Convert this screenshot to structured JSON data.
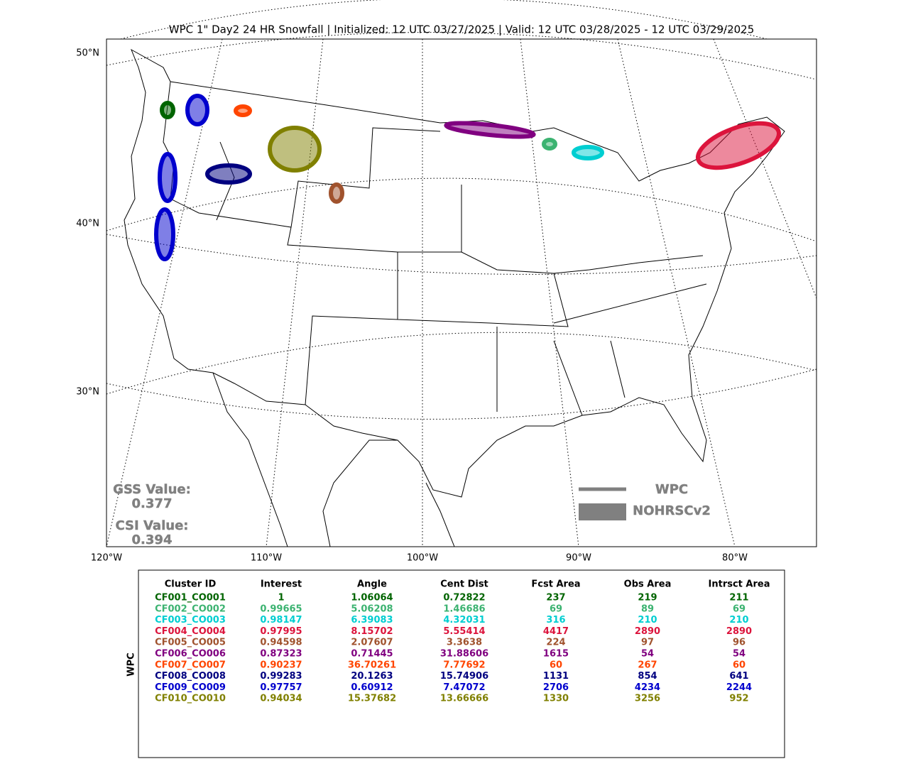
{
  "title": "WPC 1\" Day2 24 HR Snowfall | Initialized: 12 UTC 03/27/2025 | Valid: 12 UTC 03/28/2025 - 12 UTC 03/29/2025",
  "map": {
    "lat_labels": [
      "50°N",
      "40°N",
      "30°N"
    ],
    "lon_labels": [
      "120°W",
      "110°W",
      "100°W",
      "90°W",
      "80°W"
    ],
    "gss_label": "GSS Value:",
    "gss_value": "0.377",
    "csi_label": "CSI Value:",
    "csi_value": "0.394",
    "legend": [
      "WPC",
      "NOHRSCv2"
    ]
  },
  "table": {
    "side_label": "WPC",
    "headers": [
      "Cluster ID",
      "Interest",
      "Angle",
      "Cent Dist",
      "Fcst Area",
      "Obs Area",
      "Intrsct Area"
    ],
    "rows": [
      {
        "color": "#006400",
        "cells": [
          "CF001_CO001",
          "1",
          "1.06064",
          "0.72822",
          "237",
          "219",
          "211"
        ]
      },
      {
        "color": "#3cb371",
        "cells": [
          "CF002_CO002",
          "0.99665",
          "5.06208",
          "1.46686",
          "69",
          "89",
          "69"
        ]
      },
      {
        "color": "#00ced1",
        "cells": [
          "CF003_CO003",
          "0.98147",
          "6.39083",
          "4.32031",
          "316",
          "210",
          "210"
        ]
      },
      {
        "color": "#dc143c",
        "cells": [
          "CF004_CO004",
          "0.97995",
          "8.15702",
          "5.55414",
          "4417",
          "2890",
          "2890"
        ]
      },
      {
        "color": "#a0522d",
        "cells": [
          "CF005_CO005",
          "0.94598",
          "2.07607",
          "3.3638",
          "224",
          "97",
          "96"
        ]
      },
      {
        "color": "#800080",
        "cells": [
          "CF006_CO006",
          "0.87323",
          "0.71445",
          "31.88606",
          "1615",
          "54",
          "54"
        ]
      },
      {
        "color": "#ff4500",
        "cells": [
          "CF007_CO007",
          "0.90237",
          "36.70261",
          "7.77692",
          "60",
          "267",
          "60"
        ]
      },
      {
        "color": "#000080",
        "cells": [
          "CF008_CO008",
          "0.99283",
          "20.1263",
          "15.74906",
          "1131",
          "854",
          "641"
        ]
      },
      {
        "color": "#0000cd",
        "cells": [
          "CF009_CO009",
          "0.97757",
          "0.60912",
          "7.47072",
          "2706",
          "4234",
          "2244"
        ]
      },
      {
        "color": "#808000",
        "cells": [
          "CF010_CO010",
          "0.94034",
          "15.37682",
          "13.66666",
          "1330",
          "3256",
          "952"
        ]
      }
    ]
  }
}
